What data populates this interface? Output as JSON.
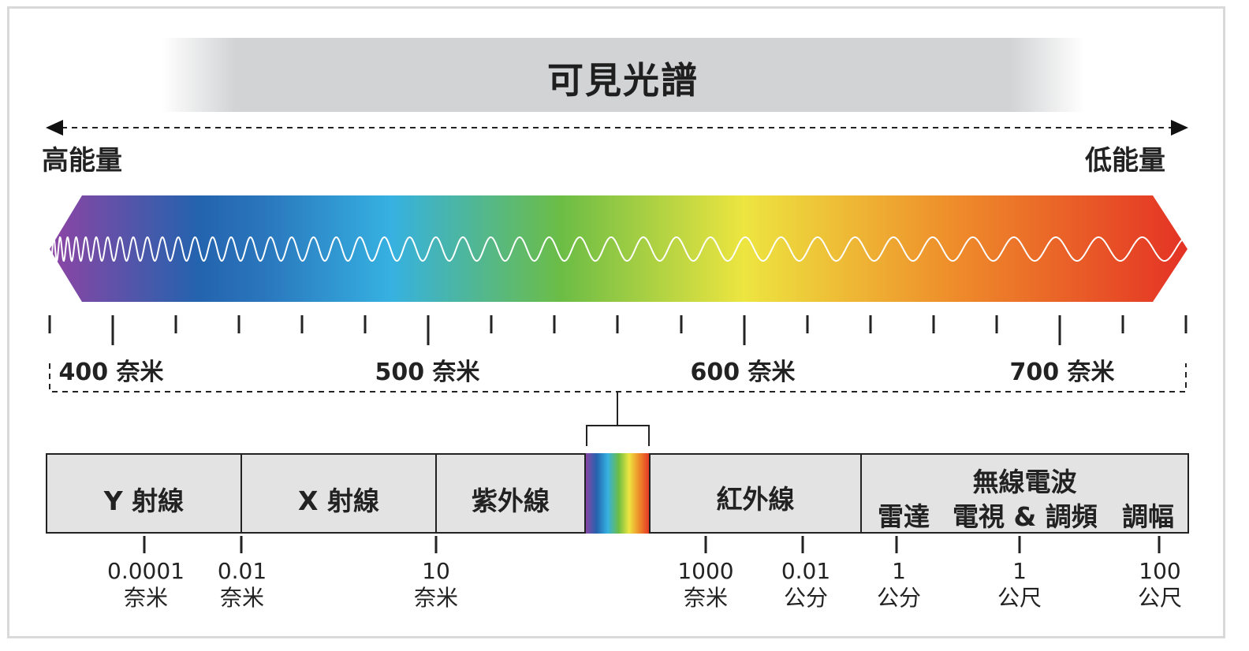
{
  "title": "可見光譜",
  "energy": {
    "high": "高能量",
    "low": "低能量"
  },
  "wavelength_labels": [
    "400 奈米",
    "500 奈米",
    "600 奈米",
    "700 奈米"
  ],
  "bands": {
    "gamma": "Y 射線",
    "xray": "X 射線",
    "uv": "紫外線",
    "ir": "紅外線",
    "radio": {
      "title": "無線電波",
      "radar": "雷達",
      "tv_fm": "電視 & 調頻",
      "am": "調幅"
    }
  },
  "scale": [
    {
      "value": "0.0001",
      "unit": "奈米"
    },
    {
      "value": "0.01",
      "unit": "奈米"
    },
    {
      "value": "10",
      "unit": "奈米"
    },
    {
      "value": "1000",
      "unit": "奈米"
    },
    {
      "value": "0.01",
      "unit": "公分"
    },
    {
      "value": "1",
      "unit": "公分"
    },
    {
      "value": "1",
      "unit": "公尺"
    },
    {
      "value": "100",
      "unit": "公尺"
    }
  ],
  "colors": {
    "violet": "#8e44a4",
    "blue": "#2463ae",
    "cyan": "#36b1e1",
    "green": "#6cbd45",
    "yellow": "#ede540",
    "orange": "#ee8a2a",
    "red": "#e43225",
    "title_band": "#d2d3d5",
    "box": "#e3e3e3",
    "line": "#222222"
  }
}
